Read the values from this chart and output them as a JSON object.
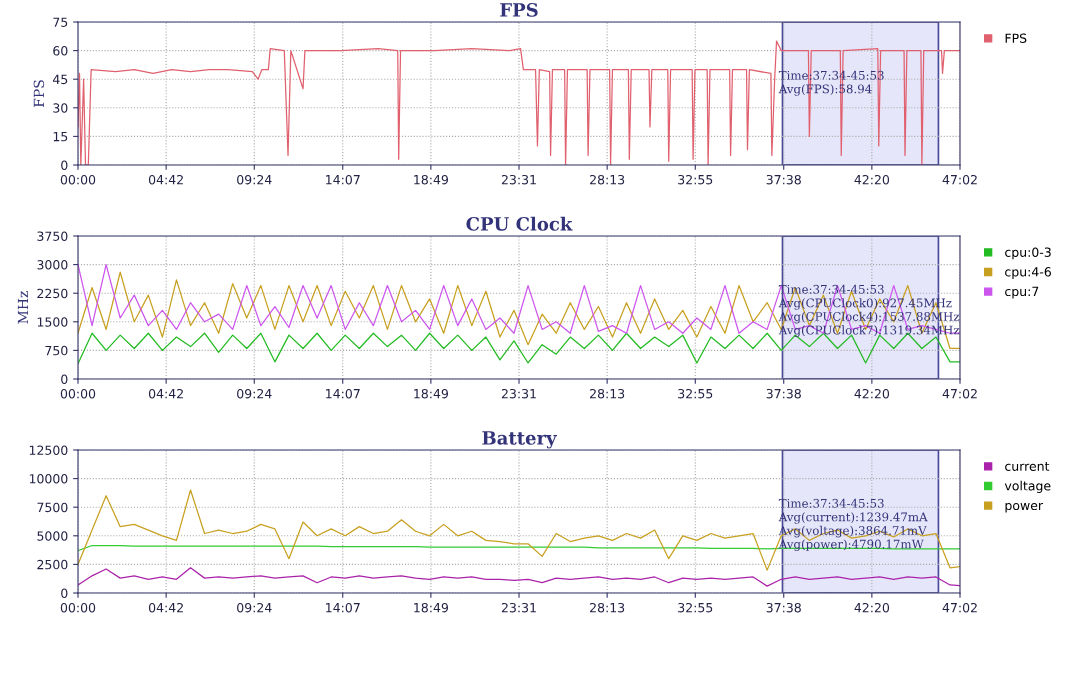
{
  "chart_data": [
    {
      "type": "line",
      "title": "FPS",
      "ylabel": "FPS",
      "xlim": [
        0,
        47.033
      ],
      "ylim": [
        0,
        75
      ],
      "yticks": [
        0,
        15,
        30,
        45,
        60,
        75
      ],
      "xticks": [
        {
          "value": 0,
          "label": "00:00"
        },
        {
          "value": 4.7,
          "label": "04:42"
        },
        {
          "value": 9.4,
          "label": "09:24"
        },
        {
          "value": 14.117,
          "label": "14:07"
        },
        {
          "value": 18.817,
          "label": "18:49"
        },
        {
          "value": 23.517,
          "label": "23:31"
        },
        {
          "value": 28.217,
          "label": "28:13"
        },
        {
          "value": 32.917,
          "label": "32:55"
        },
        {
          "value": 37.633,
          "label": "37:38"
        },
        {
          "value": 42.333,
          "label": "42:20"
        },
        {
          "value": 47.033,
          "label": "47:02"
        }
      ],
      "grid": true,
      "legend": "right",
      "bands": [
        {
          "axis": "x",
          "from": 37.567,
          "to": 45.883,
          "color": "#e6e6fa"
        }
      ],
      "annotations": [
        "Time:37:34-45:53",
        "Avg(FPS):58.94"
      ],
      "series": [
        {
          "name": "FPS",
          "color": "#e0606e",
          "x": [
            0,
            0.08,
            0.15,
            0.3,
            0.4,
            0.55,
            0.7,
            2,
            3,
            4,
            5,
            6,
            7,
            8,
            9.3,
            9.6,
            9.8,
            10.15,
            10.25,
            11.0,
            11.2,
            11.35,
            12.0,
            12.1,
            14,
            16,
            17.05,
            17.1,
            17.2,
            19,
            21,
            23,
            23.6,
            23.75,
            24.4,
            24.5,
            24.6,
            25.15,
            25.2,
            25.3,
            25.95,
            26.0,
            26.1,
            27.15,
            27.2,
            27.3,
            28.35,
            28.4,
            28.5,
            29.35,
            29.4,
            29.5,
            30.45,
            30.5,
            30.6,
            31.45,
            31.5,
            31.6,
            32.75,
            32.8,
            32.9,
            33.55,
            33.6,
            33.7,
            34.75,
            34.8,
            34.9,
            35.65,
            35.7,
            35.8,
            36.95,
            37.0,
            37.15,
            37.25,
            37.5,
            38.95,
            39.0,
            39.1,
            40.65,
            40.7,
            40.8,
            42.65,
            42.7,
            42.8,
            44.05,
            44.1,
            44.2,
            44.95,
            45.0,
            45.1,
            46.05,
            46.1,
            46.2,
            47.0
          ],
          "values": [
            20,
            48,
            0,
            45,
            0,
            0,
            50,
            49,
            50,
            48,
            50,
            49,
            50,
            50,
            49,
            45,
            50,
            50,
            61,
            60,
            5,
            60,
            40,
            60,
            60,
            61,
            60,
            3,
            60,
            60,
            61,
            60,
            61,
            50,
            50,
            10,
            50,
            49,
            5,
            50,
            50,
            0,
            50,
            50,
            5,
            50,
            50,
            0,
            50,
            50,
            3,
            50,
            50,
            20,
            50,
            50,
            2,
            50,
            50,
            3,
            50,
            50,
            0,
            50,
            50,
            5,
            50,
            50,
            8,
            50,
            48,
            5,
            45,
            65,
            60,
            60,
            15,
            60,
            60,
            5,
            60,
            61,
            10,
            60,
            60,
            5,
            60,
            60,
            0,
            60,
            60,
            48,
            60,
            60
          ]
        }
      ]
    },
    {
      "type": "line",
      "title": "CPU Clock",
      "ylabel": "MHz",
      "xlim": [
        0,
        47.033
      ],
      "ylim": [
        0,
        3750
      ],
      "yticks": [
        0,
        750,
        1500,
        2250,
        3000,
        3750
      ],
      "xticks": [
        {
          "value": 0,
          "label": "00:00"
        },
        {
          "value": 4.7,
          "label": "04:42"
        },
        {
          "value": 9.4,
          "label": "09:24"
        },
        {
          "value": 14.117,
          "label": "14:07"
        },
        {
          "value": 18.817,
          "label": "18:49"
        },
        {
          "value": 23.517,
          "label": "23:31"
        },
        {
          "value": 28.217,
          "label": "28:13"
        },
        {
          "value": 32.917,
          "label": "32:55"
        },
        {
          "value": 37.633,
          "label": "37:38"
        },
        {
          "value": 42.333,
          "label": "42:20"
        },
        {
          "value": 47.033,
          "label": "47:02"
        }
      ],
      "grid": true,
      "legend": "right",
      "bands": [
        {
          "axis": "x",
          "from": 37.567,
          "to": 45.883,
          "color": "#e6e6fa"
        }
      ],
      "annotations": [
        "Time:37:34-45:53",
        "Avg(CPUClock0):927.45MHz",
        "Avg(CPUClock4):1537.88MHz",
        "Avg(CPUClock7):1319.34MHz"
      ],
      "x": [
        0,
        0.75,
        1.5,
        2.25,
        3,
        3.75,
        4.5,
        5.25,
        6,
        6.75,
        7.5,
        8.25,
        9,
        9.75,
        10.5,
        11.25,
        12,
        12.75,
        13.5,
        14.25,
        15,
        15.75,
        16.5,
        17.25,
        18,
        18.75,
        19.5,
        20.25,
        21,
        21.75,
        22.5,
        23.25,
        24,
        24.75,
        25.5,
        26.25,
        27,
        27.75,
        28.5,
        29.25,
        30,
        30.75,
        31.5,
        32.25,
        33,
        33.75,
        34.5,
        35.25,
        36,
        36.75,
        37.5,
        38.25,
        39,
        39.75,
        40.5,
        41.25,
        42,
        42.75,
        43.5,
        44.25,
        45,
        45.75,
        46.5,
        47
      ],
      "series": [
        {
          "name": "cpu:0-3",
          "color": "#22bb22",
          "values": [
            400,
            1200,
            750,
            1150,
            800,
            1200,
            750,
            1100,
            850,
            1200,
            700,
            1150,
            800,
            1200,
            450,
            1150,
            800,
            1200,
            750,
            1150,
            800,
            1200,
            850,
            1150,
            750,
            1200,
            800,
            1150,
            750,
            1100,
            500,
            1000,
            420,
            900,
            650,
            1100,
            800,
            1150,
            750,
            1200,
            800,
            1100,
            850,
            1150,
            420,
            1100,
            800,
            1150,
            800,
            1200,
            750,
            1150,
            850,
            1200,
            800,
            1150,
            420,
            1150,
            800,
            1200,
            800,
            1100,
            450,
            450
          ]
        },
        {
          "name": "cpu:4-6",
          "color": "#c8a020",
          "values": [
            1200,
            2400,
            1300,
            2800,
            1500,
            2200,
            1100,
            2600,
            1400,
            2000,
            1200,
            2500,
            1600,
            2450,
            1300,
            2450,
            1500,
            2450,
            1400,
            2300,
            1600,
            2450,
            1300,
            2450,
            1500,
            2100,
            1200,
            2450,
            1400,
            2300,
            1100,
            1800,
            900,
            1700,
            1200,
            2000,
            1300,
            1900,
            1100,
            2000,
            1200,
            2100,
            1300,
            1800,
            1100,
            1900,
            1200,
            2450,
            1500,
            2000,
            1300,
            2400,
            1400,
            2200,
            1200,
            2300,
            1300,
            2100,
            1500,
            2450,
            1200,
            2000,
            800,
            800
          ]
        },
        {
          "name": "cpu:7",
          "color": "#cc55ee",
          "values": [
            3000,
            1400,
            3000,
            1600,
            2200,
            1400,
            1800,
            1300,
            2000,
            1500,
            1700,
            1300,
            2450,
            1400,
            1900,
            1350,
            2450,
            1600,
            2450,
            1300,
            2000,
            1400,
            2450,
            1500,
            1800,
            1300,
            2450,
            1400,
            2100,
            1300,
            1600,
            1200,
            2450,
            1300,
            1500,
            1200,
            2450,
            1250,
            1400,
            1200,
            2450,
            1300,
            1500,
            1200,
            1600,
            1300,
            2450,
            1200,
            1500,
            1300,
            2450,
            1300,
            1400,
            1200,
            2450,
            1300,
            1400,
            1200,
            2450,
            1300,
            1400,
            1300,
            1200,
            1200
          ]
        }
      ]
    },
    {
      "type": "line",
      "title": "Battery",
      "xlim": [
        0,
        47.033
      ],
      "ylim": [
        0,
        12500
      ],
      "yticks": [
        0,
        2500,
        5000,
        7500,
        10000,
        12500
      ],
      "xticks": [
        {
          "value": 0,
          "label": "00:00"
        },
        {
          "value": 4.7,
          "label": "04:42"
        },
        {
          "value": 9.4,
          "label": "09:24"
        },
        {
          "value": 14.117,
          "label": "14:07"
        },
        {
          "value": 18.817,
          "label": "18:49"
        },
        {
          "value": 23.517,
          "label": "23:31"
        },
        {
          "value": 28.217,
          "label": "28:13"
        },
        {
          "value": 32.917,
          "label": "32:55"
        },
        {
          "value": 37.633,
          "label": "37:38"
        },
        {
          "value": 42.333,
          "label": "42:20"
        },
        {
          "value": 47.033,
          "label": "47:02"
        }
      ],
      "grid": true,
      "legend": "right",
      "bands": [
        {
          "axis": "x",
          "from": 37.567,
          "to": 45.883,
          "color": "#e6e6fa"
        }
      ],
      "annotations": [
        "Time:37:34-45:53",
        "Avg(current):1239.47mA",
        "Avg(voltage):3864.71mV",
        "Avg(power):4790.17mW"
      ],
      "x": [
        0,
        0.75,
        1.5,
        2.25,
        3,
        3.75,
        4.5,
        5.25,
        6,
        6.75,
        7.5,
        8.25,
        9,
        9.75,
        10.5,
        11.25,
        12,
        12.75,
        13.5,
        14.25,
        15,
        15.75,
        16.5,
        17.25,
        18,
        18.75,
        19.5,
        20.25,
        21,
        21.75,
        22.5,
        23.25,
        24,
        24.75,
        25.5,
        26.25,
        27,
        27.75,
        28.5,
        29.25,
        30,
        30.75,
        31.5,
        32.25,
        33,
        33.75,
        34.5,
        35.25,
        36,
        36.75,
        37.5,
        38.25,
        39,
        39.75,
        40.5,
        41.25,
        42,
        42.75,
        43.5,
        44.25,
        45,
        45.75,
        46.5,
        47
      ],
      "series": [
        {
          "name": "current",
          "color": "#aa22aa",
          "values": [
            700,
            1500,
            2100,
            1300,
            1500,
            1200,
            1400,
            1200,
            2200,
            1300,
            1400,
            1300,
            1400,
            1500,
            1300,
            1400,
            1500,
            900,
            1400,
            1300,
            1500,
            1300,
            1400,
            1500,
            1300,
            1200,
            1400,
            1300,
            1400,
            1200,
            1200,
            1100,
            1200,
            900,
            1300,
            1200,
            1300,
            1400,
            1200,
            1300,
            1200,
            1400,
            900,
            1300,
            1200,
            1300,
            1200,
            1300,
            1400,
            600,
            1200,
            1400,
            1200,
            1300,
            1400,
            1200,
            1300,
            1400,
            1200,
            1400,
            1300,
            1400,
            700,
            650
          ]
        },
        {
          "name": "voltage",
          "color": "#33cc33",
          "values": [
            3700,
            4150,
            4150,
            4150,
            4100,
            4100,
            4100,
            4100,
            4100,
            4100,
            4100,
            4100,
            4100,
            4100,
            4100,
            4100,
            4100,
            4100,
            4050,
            4050,
            4050,
            4050,
            4050,
            4050,
            4050,
            4000,
            4000,
            4000,
            4000,
            4000,
            4000,
            4000,
            4000,
            4000,
            4000,
            4000,
            4000,
            3950,
            3950,
            3950,
            3950,
            3950,
            3950,
            3950,
            3950,
            3900,
            3900,
            3900,
            3900,
            3850,
            3900,
            3900,
            3900,
            3900,
            3900,
            3900,
            3900,
            3900,
            3850,
            3850,
            3850,
            3850,
            3850,
            3850
          ]
        },
        {
          "name": "power",
          "color": "#c8a020",
          "values": [
            2500,
            5500,
            8500,
            5800,
            6000,
            5500,
            5000,
            4600,
            9000,
            5200,
            5500,
            5200,
            5400,
            6000,
            5600,
            3000,
            6200,
            5000,
            5600,
            5000,
            5800,
            5200,
            5400,
            6400,
            5400,
            5000,
            6000,
            5000,
            5400,
            4600,
            4500,
            4300,
            4300,
            3200,
            5200,
            4500,
            4800,
            5000,
            4600,
            5200,
            4800,
            5500,
            3000,
            5000,
            4600,
            5200,
            4800,
            5000,
            5200,
            2000,
            5000,
            5600,
            4600,
            5200,
            5500,
            4800,
            5000,
            5400,
            4900,
            5600,
            5000,
            5200,
            2200,
            2300
          ]
        }
      ]
    }
  ]
}
